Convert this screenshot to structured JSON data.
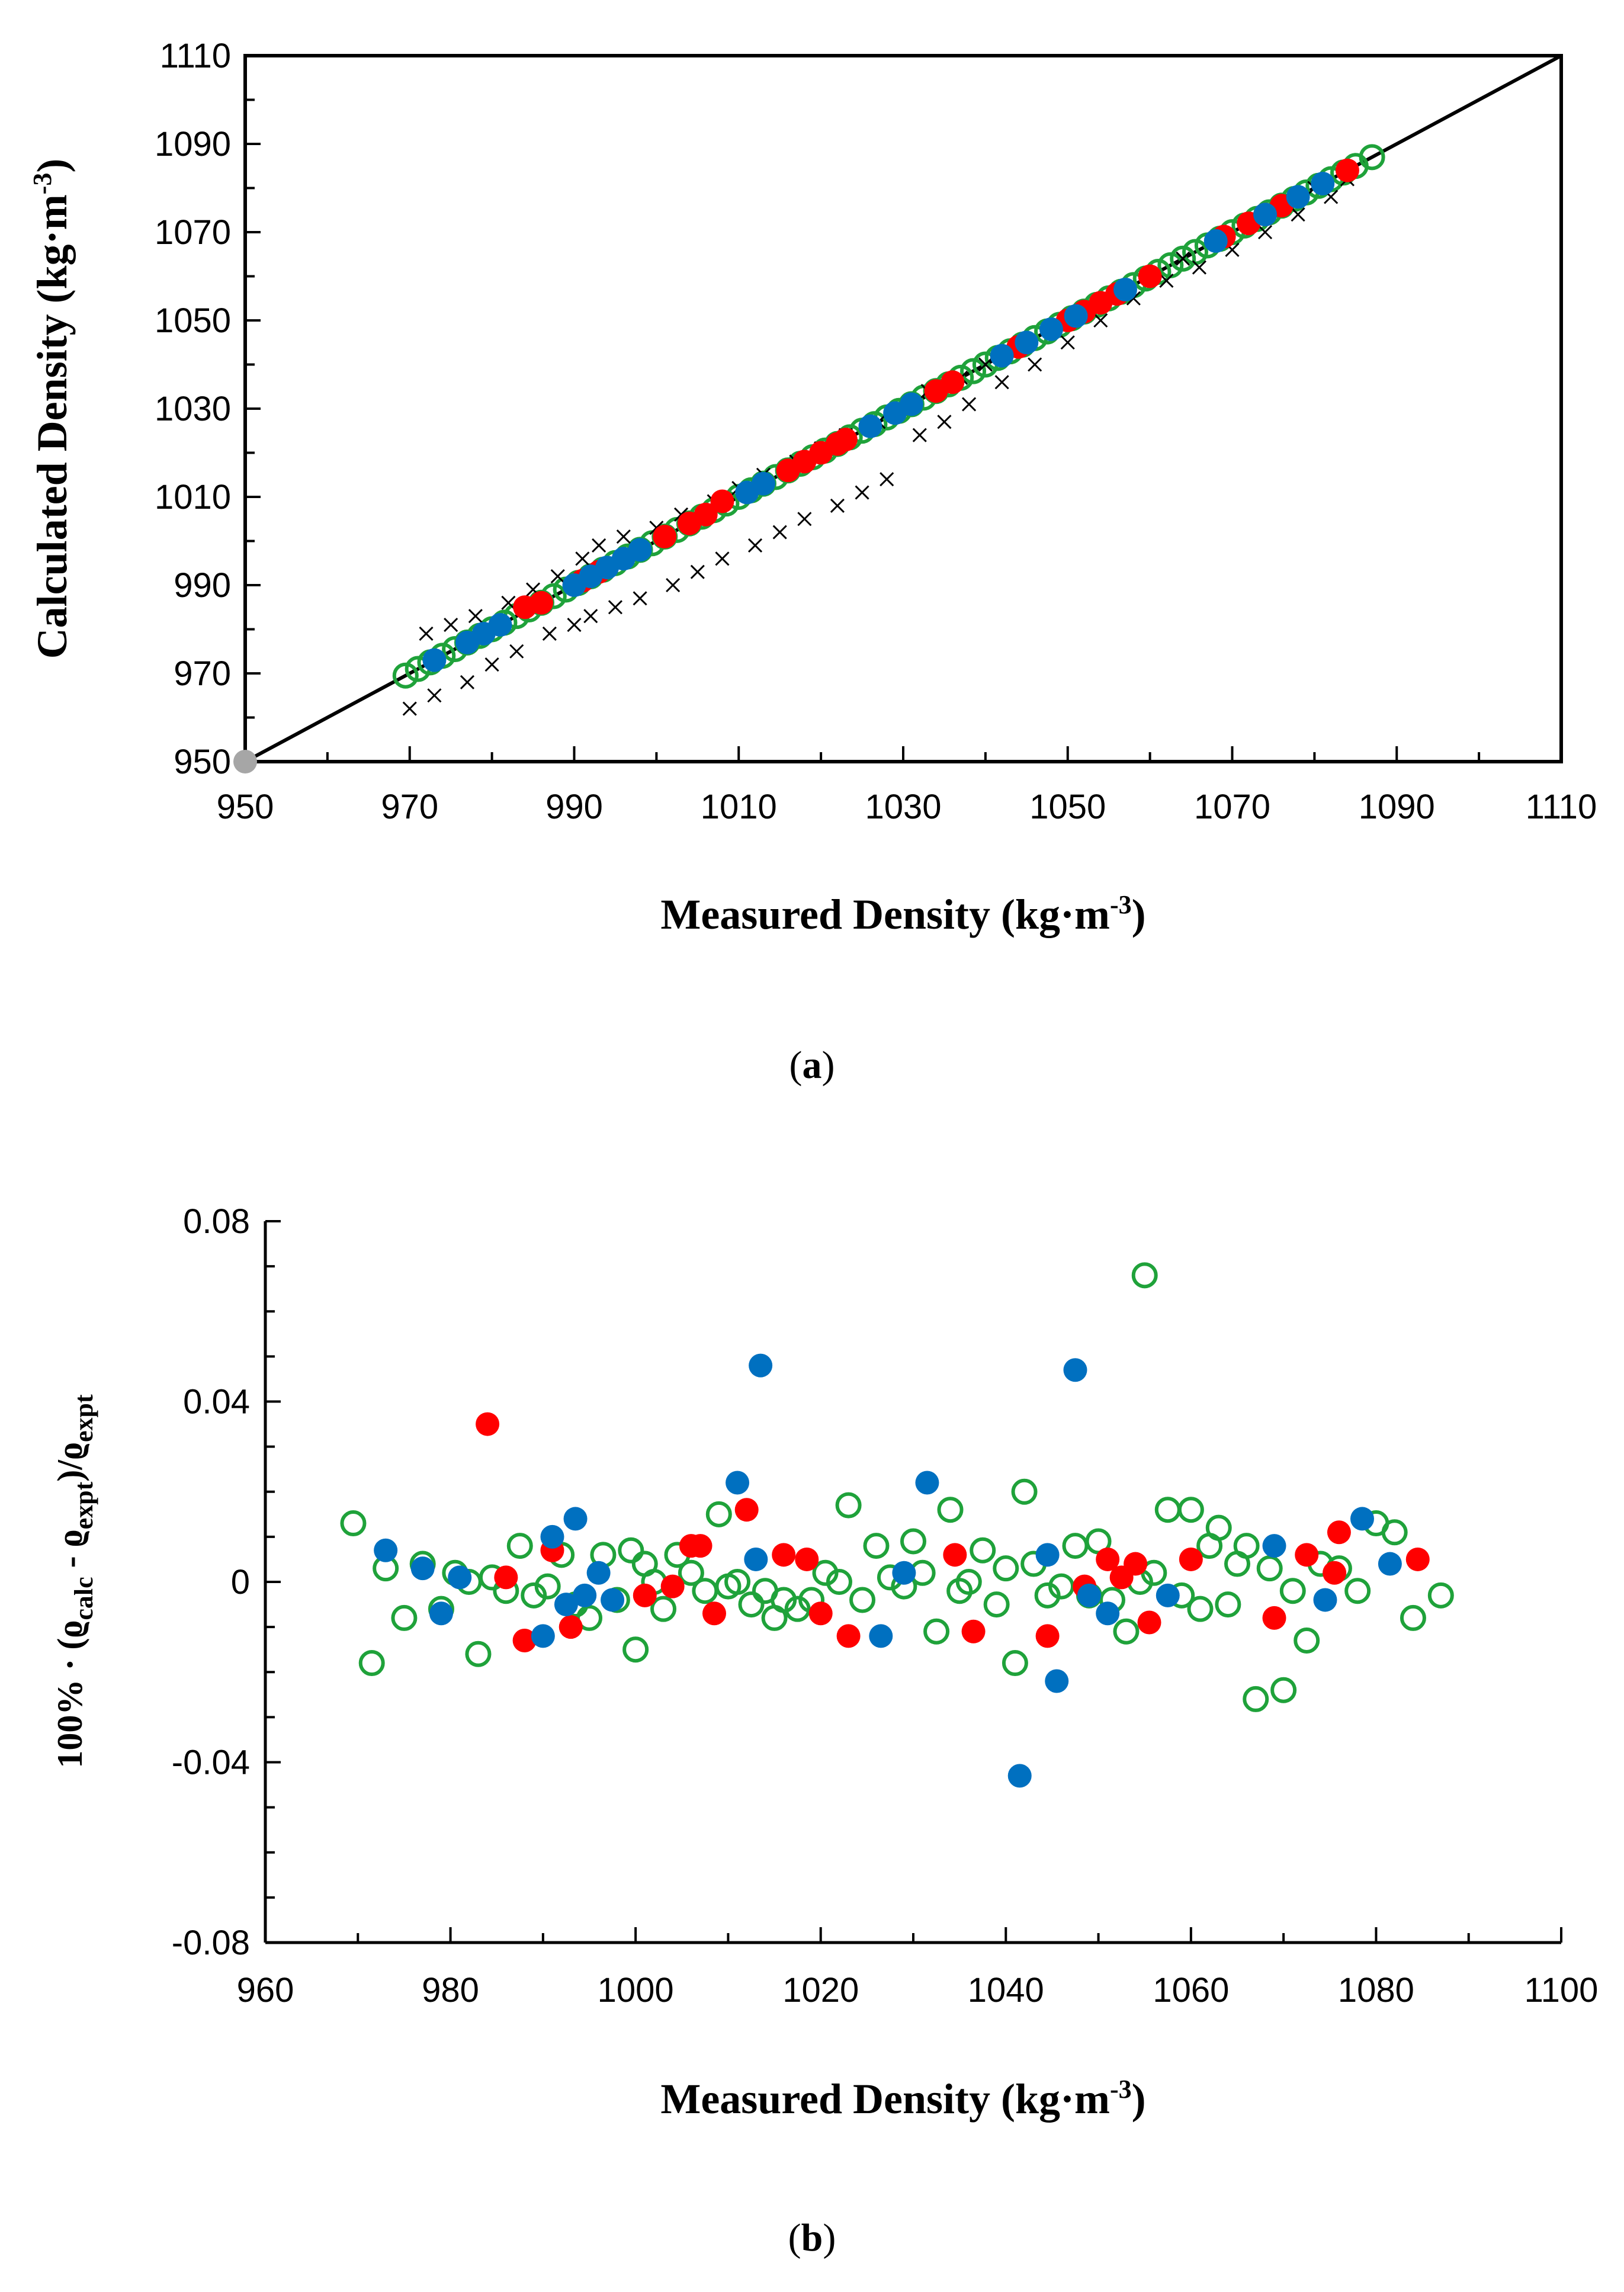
{
  "chart_data": [
    {
      "type": "scatter",
      "panel_label": "a",
      "xlabel": {
        "text": "Measured Density (kg·m",
        "sup": "-3",
        "close": ")"
      },
      "ylabel": {
        "text": "Calculated Density (kg·m",
        "sup": "-3",
        "close": ")"
      },
      "xlim": [
        950,
        1110
      ],
      "ylim": [
        950,
        1110
      ],
      "xticks": [
        "950",
        "970",
        "990",
        "1010",
        "1030",
        "1050",
        "1070",
        "1090",
        "1110"
      ],
      "yticks": [
        "950",
        "970",
        "990",
        "1010",
        "1030",
        "1050",
        "1070",
        "1090",
        "1110"
      ],
      "reference_line": {
        "from": [
          950,
          950
        ],
        "to": [
          1110,
          1110
        ],
        "color": "#000000"
      },
      "origin_marker": {
        "x": 950,
        "y": 950,
        "color": "#a6a6a6"
      },
      "series": [
        {
          "name": "green-open",
          "marker": "open-circle",
          "color": "#1fa23a",
          "x": [
            969.5,
            971.0,
            972.5,
            974.0,
            975.5,
            977.0,
            978.5,
            980.0,
            981.5,
            983.0,
            984.5,
            986.0,
            987.5,
            989.0,
            990.5,
            992.0,
            993.5,
            995.0,
            996.5,
            998.0,
            999.5,
            1001.0,
            1002.5,
            1004.0,
            1005.5,
            1007.0,
            1008.5,
            1010.0,
            1011.5,
            1013.0,
            1014.5,
            1016.0,
            1017.5,
            1019.0,
            1020.5,
            1022.0,
            1023.5,
            1025.0,
            1026.5,
            1028.0,
            1029.5,
            1031.0,
            1032.5,
            1034.0,
            1035.5,
            1037.0,
            1038.5,
            1040.0,
            1041.5,
            1043.0,
            1044.5,
            1046.0,
            1047.5,
            1049.0,
            1050.5,
            1052.0,
            1053.5,
            1055.0,
            1056.5,
            1058.0,
            1059.5,
            1061.0,
            1062.5,
            1064.0,
            1065.5,
            1067.0,
            1068.5,
            1070.0,
            1071.5,
            1073.0,
            1074.5,
            1076.0,
            1077.5,
            1079.0,
            1080.5,
            1082.0,
            1083.5,
            1085.0,
            1087.0
          ],
          "y": [
            969.5,
            971.0,
            972.5,
            974.0,
            975.5,
            977.0,
            978.5,
            980.0,
            981.5,
            983.0,
            984.5,
            986.0,
            987.5,
            989.0,
            990.5,
            992.0,
            993.5,
            995.0,
            996.5,
            998.0,
            999.5,
            1001.0,
            1002.5,
            1004.0,
            1005.5,
            1007.0,
            1008.5,
            1010.0,
            1011.5,
            1013.0,
            1014.5,
            1016.0,
            1017.5,
            1019.0,
            1020.5,
            1022.0,
            1023.5,
            1025.0,
            1026.5,
            1028.0,
            1029.5,
            1031.0,
            1032.5,
            1034.0,
            1035.5,
            1037.0,
            1038.5,
            1040.0,
            1041.5,
            1043.0,
            1044.5,
            1046.0,
            1047.5,
            1049.0,
            1050.5,
            1052.0,
            1053.5,
            1055.0,
            1056.5,
            1058.0,
            1059.5,
            1061.0,
            1062.5,
            1064.0,
            1065.5,
            1067.0,
            1068.5,
            1070.0,
            1071.5,
            1073.0,
            1074.5,
            1076.0,
            1077.5,
            1079.0,
            1080.5,
            1082.0,
            1083.5,
            1085.0,
            1087.0
          ]
        },
        {
          "name": "black-cross",
          "marker": "x",
          "color": "#000000",
          "x": [
            970,
            972,
            973,
            975,
            977,
            978,
            980,
            982,
            983,
            985,
            987,
            988,
            990,
            991,
            992,
            993,
            995,
            996,
            998,
            1000,
            1002,
            1003,
            1005,
            1007,
            1008,
            1010,
            1012,
            1013,
            1015,
            1017,
            1018,
            1020,
            1022,
            1023,
            1025,
            1027,
            1028,
            1030,
            1032,
            1033,
            1035,
            1037,
            1038,
            1040,
            1042,
            1044,
            1046,
            1048,
            1050,
            1052,
            1054,
            1056,
            1058,
            1060,
            1062,
            1064,
            1066,
            1068,
            1070,
            1072,
            1074,
            1076,
            1078,
            1080,
            1082,
            1084
          ],
          "y": [
            962,
            979,
            965,
            981,
            968,
            983,
            972,
            986,
            975,
            989,
            979,
            992,
            981,
            996,
            983,
            999,
            985,
            1001,
            987,
            1003,
            990,
            1006,
            993,
            1009,
            996,
            1012,
            999,
            1015,
            1002,
            1018,
            1005,
            1021,
            1008,
            1024,
            1011,
            1027,
            1014,
            1030,
            1024,
            1034,
            1027,
            1037,
            1031,
            1040,
            1036,
            1044,
            1040,
            1048,
            1045,
            1052,
            1050,
            1056,
            1055,
            1060,
            1059,
            1064,
            1062,
            1068,
            1066,
            1072,
            1070,
            1076,
            1074,
            1080,
            1078,
            1082
          ]
        },
        {
          "name": "red-filled",
          "marker": "filled-circle",
          "color": "#ff0000",
          "x": [
            984,
            986,
            991,
            993,
            1001,
            1004,
            1006,
            1008,
            1016,
            1018,
            1020,
            1022,
            1023,
            1034,
            1036,
            1044,
            1050,
            1052,
            1054,
            1056,
            1060,
            1069,
            1072,
            1074,
            1076,
            1084
          ],
          "y": [
            985,
            986,
            991,
            993,
            1001,
            1004,
            1006,
            1009,
            1016,
            1018,
            1020,
            1022,
            1023,
            1034,
            1036,
            1044,
            1050,
            1052,
            1054,
            1056,
            1060,
            1069,
            1072,
            1074,
            1076,
            1084
          ]
        },
        {
          "name": "blue-filled",
          "marker": "filled-circle",
          "color": "#0070c0",
          "x": [
            973,
            977,
            979,
            981,
            990,
            992,
            994,
            996,
            998,
            1011,
            1013,
            1026,
            1029,
            1031,
            1042,
            1045,
            1048,
            1051,
            1057,
            1068,
            1074,
            1078,
            1081
          ],
          "y": [
            973,
            977,
            979,
            981,
            990,
            992,
            994,
            996,
            998,
            1011,
            1013,
            1026,
            1029,
            1031,
            1042,
            1045,
            1048,
            1051,
            1057,
            1068,
            1074,
            1078,
            1081
          ]
        }
      ]
    },
    {
      "type": "scatter",
      "panel_label": "b",
      "xlabel": {
        "text": "Measured Density (kg·m",
        "sup": "-3",
        "close": ")"
      },
      "ylabel": {
        "text": "100% · (ϱ",
        "sub1": "calc",
        "mid": " - ϱ",
        "sub2": "expt",
        "close": ")/ϱ",
        "sub3": "expt"
      },
      "xlim": [
        960,
        1100
      ],
      "ylim": [
        -0.08,
        0.08
      ],
      "xticks": [
        "960",
        "980",
        "1000",
        "1020",
        "1040",
        "1060",
        "1080",
        "1100"
      ],
      "yticks": [
        "0.08",
        "0.04",
        "0",
        "-0.04",
        "-0.08"
      ],
      "ytick_values": [
        0.08,
        0.04,
        0,
        -0.04,
        -0.08
      ],
      "series": [
        {
          "name": "green-open",
          "marker": "open-circle",
          "color": "#1fa23a",
          "x": [
            969.5,
            971.5,
            973,
            975,
            977,
            979,
            980.5,
            982,
            983,
            984.5,
            986,
            987.5,
            989,
            990.5,
            992,
            993.5,
            995,
            996.5,
            998,
            999.5,
            1000,
            1001,
            1002,
            1003,
            1004.5,
            1006,
            1007.5,
            1009,
            1010,
            1011,
            1012.5,
            1014,
            1015,
            1016,
            1017.5,
            1019,
            1020.5,
            1022,
            1023,
            1024.5,
            1026,
            1027.5,
            1029,
            1030,
            1031,
            1032.5,
            1034,
            1035,
            1036,
            1037.5,
            1039,
            1040,
            1041,
            1042,
            1043,
            1044.5,
            1046,
            1047.5,
            1049,
            1050,
            1051.5,
            1053,
            1054.5,
            1055,
            1056,
            1057.5,
            1059,
            1060,
            1061,
            1062,
            1063,
            1064,
            1065,
            1066,
            1067,
            1068.5,
            1070,
            1071,
            1072.5,
            1074,
            1076,
            1078,
            1080,
            1082,
            1084,
            1087
          ],
          "y": [
            0.013,
            -0.018,
            0.003,
            -0.008,
            0.004,
            -0.006,
            0.002,
            0.0,
            -0.016,
            0.001,
            -0.002,
            0.008,
            -0.003,
            -0.001,
            0.006,
            -0.005,
            -0.008,
            0.006,
            -0.004,
            0.007,
            -0.015,
            0.004,
            0.0,
            -0.006,
            0.006,
            0.002,
            -0.002,
            0.015,
            -0.001,
            0.0,
            -0.005,
            -0.002,
            -0.008,
            -0.004,
            -0.006,
            -0.004,
            0.002,
            0.0,
            0.017,
            -0.004,
            0.008,
            0.001,
            -0.001,
            0.009,
            0.002,
            -0.011,
            0.016,
            -0.002,
            0.0,
            0.007,
            -0.005,
            0.003,
            -0.018,
            0.02,
            0.004,
            -0.003,
            -0.001,
            0.008,
            -0.003,
            0.009,
            -0.004,
            -0.011,
            0.0,
            0.068,
            0.002,
            0.016,
            -0.003,
            0.016,
            -0.006,
            0.008,
            0.012,
            -0.005,
            0.004,
            0.008,
            -0.026,
            0.003,
            -0.024,
            -0.002,
            -0.013,
            0.004,
            0.003,
            -0.002,
            0.013,
            0.011,
            -0.008,
            -0.003
          ]
        },
        {
          "name": "red-filled",
          "marker": "filled-circle",
          "color": "#ff0000",
          "x": [
            984,
            986,
            988,
            991,
            993,
            1001,
            1004,
            1006,
            1007,
            1008.5,
            1012,
            1016,
            1018.5,
            1020,
            1023,
            1034.5,
            1036.5,
            1044.5,
            1048.5,
            1051,
            1052.5,
            1054,
            1055.5,
            1060,
            1069,
            1072.5,
            1075.5,
            1076,
            1084.5
          ],
          "y": [
            0.035,
            0.001,
            -0.013,
            0.007,
            -0.01,
            -0.003,
            -0.001,
            0.008,
            0.008,
            -0.007,
            0.016,
            0.006,
            0.005,
            -0.007,
            -0.012,
            0.006,
            -0.011,
            -0.012,
            -0.001,
            0.005,
            0.001,
            0.004,
            -0.009,
            0.005,
            -0.008,
            0.006,
            0.002,
            0.011,
            0.005
          ]
        },
        {
          "name": "blue-filled",
          "marker": "filled-circle",
          "color": "#0070c0",
          "x": [
            973,
            977,
            979,
            981,
            990,
            991,
            992.5,
            993.5,
            994.5,
            996,
            997.5,
            1011,
            1013,
            1013.5,
            1026.5,
            1029,
            1031.5,
            1041.5,
            1044.5,
            1045.5,
            1047.5,
            1049,
            1051,
            1057.5,
            1069,
            1074.5,
            1078.5,
            1081.5
          ],
          "y": [
            0.007,
            0.003,
            -0.007,
            0.001,
            -0.012,
            0.01,
            -0.005,
            0.014,
            -0.003,
            0.002,
            -0.004,
            0.022,
            0.005,
            0.048,
            -0.012,
            0.002,
            0.022,
            -0.043,
            0.006,
            -0.022,
            0.047,
            -0.003,
            -0.007,
            -0.003,
            0.008,
            -0.004,
            0.014,
            0.004
          ]
        }
      ]
    }
  ]
}
